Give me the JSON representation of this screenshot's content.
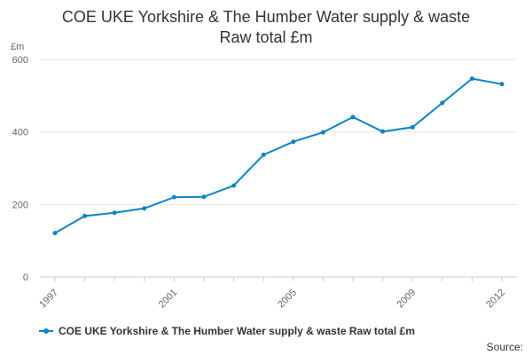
{
  "title_line1": "COE UKE Yorkshire & The Humber Water supply & waste",
  "title_line2": "Raw total £m",
  "source_label": "Source:",
  "chart_data": {
    "type": "line",
    "title": "COE UKE Yorkshire & The Humber Water supply & waste Raw total £m",
    "ylabel": "£m",
    "xlabel": "",
    "x": [
      1997,
      1998,
      1999,
      2000,
      2001,
      2002,
      2003,
      2004,
      2005,
      2006,
      2007,
      2008,
      2009,
      2010,
      2011,
      2012
    ],
    "x_tick_labels": [
      "1997",
      "2001",
      "2005",
      "2009",
      "2012"
    ],
    "y_ticks": [
      0,
      200,
      400,
      600
    ],
    "ylim": [
      0,
      600
    ],
    "grid": true,
    "legend_position": "bottom",
    "series": [
      {
        "name": "COE UKE Yorkshire & The Humber Water supply & waste Raw total £m",
        "color": "#0b84c5",
        "values": [
          121,
          168,
          177,
          189,
          220,
          221,
          252,
          337,
          373,
          399,
          441,
          401,
          413,
          480,
          547,
          532
        ]
      }
    ]
  }
}
